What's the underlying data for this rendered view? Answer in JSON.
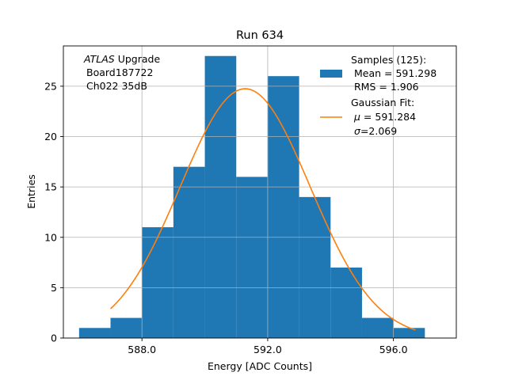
{
  "chart_data": {
    "type": "bar",
    "title": "Run 634",
    "xlabel": "Energy [ADC Counts]",
    "ylabel": "Entries",
    "xlim": [
      585.5,
      598.0
    ],
    "ylim": [
      0,
      29
    ],
    "grid": true,
    "x_ticks": [
      588,
      592,
      596
    ],
    "x_tick_labels": [
      "588.0",
      "592.0",
      "596.0"
    ],
    "y_ticks": [
      0,
      5,
      10,
      15,
      20,
      25
    ],
    "y_tick_labels": [
      "0",
      "5",
      "10",
      "15",
      "20",
      "25"
    ],
    "histogram": {
      "name": "Samples",
      "bin_edges": [
        586,
        587,
        588,
        589,
        590,
        591,
        592,
        593,
        594,
        595,
        596,
        597
      ],
      "counts": [
        1,
        2,
        11,
        17,
        28,
        16,
        26,
        14,
        7,
        2,
        1
      ],
      "color": "#1f77b4"
    },
    "fit": {
      "name": "Gaussian Fit",
      "mu": 591.284,
      "sigma": 2.069,
      "amplitude": 24.75,
      "x_range": [
        587,
        596.7
      ],
      "color": "#ff7f0e"
    },
    "annotation": {
      "line1_italic": "ATLAS",
      "line1_rest": " Upgrade",
      "line2": "Board187722",
      "line3": "Ch022 35dB"
    },
    "legend": {
      "position": "top-right",
      "samples_title": "Samples (125):",
      "samples_mean": "Mean = 591.298",
      "samples_rms": "RMS = 1.906",
      "fit_title": "Gaussian Fit:",
      "fit_mu_symbol": "μ",
      "fit_mu_text": " = 591.284",
      "fit_sigma_symbol": "σ",
      "fit_sigma_text": "=2.069"
    }
  }
}
